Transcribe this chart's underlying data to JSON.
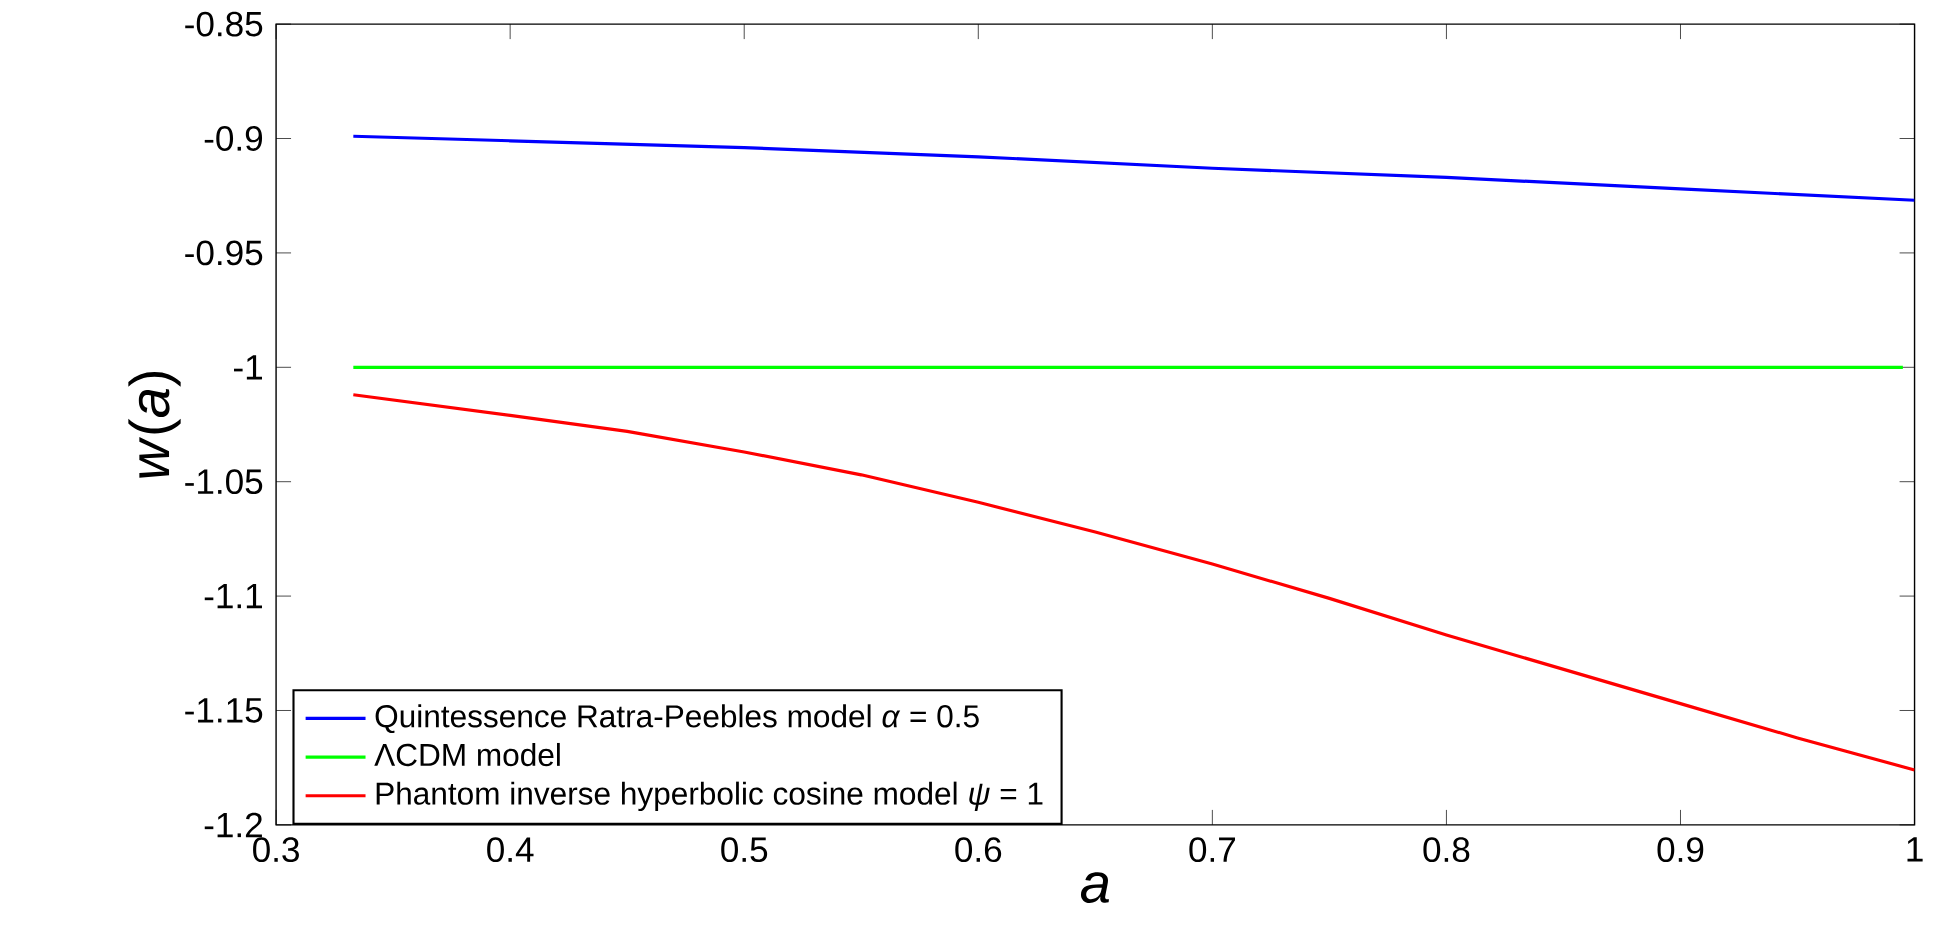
{
  "chart_data": {
    "type": "line",
    "xlabel": "*a*",
    "ylabel": "*w*(*a*)",
    "xlim": [
      0.3,
      1
    ],
    "ylim": [
      -1.2,
      -0.85
    ],
    "xticks": [
      0.3,
      0.4,
      0.5,
      0.6,
      0.7,
      0.8,
      0.9,
      1
    ],
    "yticks": [
      -1.2,
      -1.15,
      -1.1,
      -1.05,
      -1,
      -0.95,
      -0.9,
      -0.85
    ],
    "legend": "bottom left",
    "grid": false,
    "line_style": "solid",
    "marker": "none",
    "series": [
      {
        "name": "Quintessence Ratra-Peebles model *α* = 0.5",
        "color": "#0000ff",
        "x": [
          0.333,
          0.4,
          0.5,
          0.6,
          0.7,
          0.8,
          0.9,
          1
        ],
        "values": [
          -0.899,
          -0.901,
          -0.904,
          -0.908,
          -0.913,
          -0.917,
          -0.922,
          -0.927
        ]
      },
      {
        "name": "ΛCDM model",
        "color": "#00ff00",
        "x": [
          0.333,
          0.995
        ],
        "values": [
          -1,
          -1
        ]
      },
      {
        "name": "Phantom inverse hyperbolic cosine model *ψ* = 1",
        "color": "#ff0000",
        "x": [
          0.333,
          0.4,
          0.45,
          0.5,
          0.55,
          0.6,
          0.65,
          0.7,
          0.75,
          0.8,
          0.85,
          0.9,
          0.95,
          1
        ],
        "values": [
          -1.012,
          -1.021,
          -1.028,
          -1.037,
          -1.047,
          -1.059,
          -1.072,
          -1.086,
          -1.101,
          -1.117,
          -1.132,
          -1.147,
          -1.162,
          -1.176
        ]
      }
    ]
  }
}
